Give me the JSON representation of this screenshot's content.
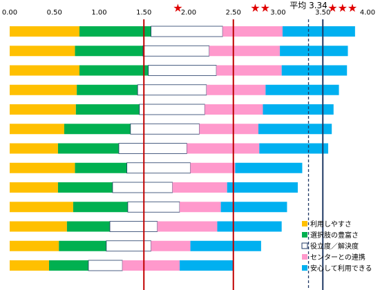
{
  "chart_data": {
    "type": "bar",
    "stacked": true,
    "orientation": "horizontal",
    "title": "",
    "xlabel": "",
    "ylabel": "",
    "xlim": [
      0,
      4.0
    ],
    "x_ticks": [
      "0.00",
      "0.50",
      "1.00",
      "1.50",
      "2.00",
      "2.50",
      "3.00",
      "3.50",
      "4.00"
    ],
    "grid": false,
    "legend_position": "bottom-right",
    "series": [
      {
        "name": "利用しやすさ",
        "color": "#ffc000",
        "hollow": false,
        "values": [
          0.78,
          0.73,
          0.78,
          0.75,
          0.74,
          0.61,
          0.54,
          0.73,
          0.54,
          0.71,
          0.64,
          0.55,
          0.44
        ]
      },
      {
        "name": "選択肢の豊富さ",
        "color": "#00b050",
        "hollow": false,
        "values": [
          0.8,
          0.76,
          0.77,
          0.68,
          0.71,
          0.74,
          0.68,
          0.58,
          0.61,
          0.61,
          0.48,
          0.53,
          0.44
        ]
      },
      {
        "name": "役立度／解決度",
        "color": "#ffffff",
        "hollow": true,
        "values": [
          0.8,
          0.74,
          0.76,
          0.77,
          0.73,
          0.77,
          0.76,
          0.71,
          0.67,
          0.58,
          0.53,
          0.5,
          0.38
        ]
      },
      {
        "name": "センターとの連携",
        "color": "#ff99cc",
        "hollow": false,
        "values": [
          0.67,
          0.79,
          0.73,
          0.66,
          0.65,
          0.66,
          0.81,
          0.5,
          0.61,
          0.46,
          0.67,
          0.44,
          0.64
        ]
      },
      {
        "name": "安心して利用できる",
        "color": "#00b0f0",
        "hollow": false,
        "values": [
          0.81,
          0.76,
          0.73,
          0.82,
          0.79,
          0.82,
          0.77,
          0.75,
          0.79,
          0.74,
          0.72,
          0.79,
          0.6
        ]
      }
    ],
    "reference_lines": [
      {
        "value": 1.5,
        "style": "solid",
        "color": "#c00000",
        "label": ""
      },
      {
        "value": 2.5,
        "style": "solid",
        "color": "#c00000",
        "label": ""
      },
      {
        "value": 3.5,
        "style": "solid",
        "color": "#1f3864",
        "label": ""
      },
      {
        "value": 3.34,
        "style": "dashed",
        "color": "#1f3864",
        "label": "平均 3.34"
      }
    ],
    "star_markers": [
      {
        "at": 1.88,
        "label": "★"
      },
      {
        "at": 2.8,
        "label": "★★"
      },
      {
        "at": 3.72,
        "label": "★★★"
      }
    ]
  }
}
